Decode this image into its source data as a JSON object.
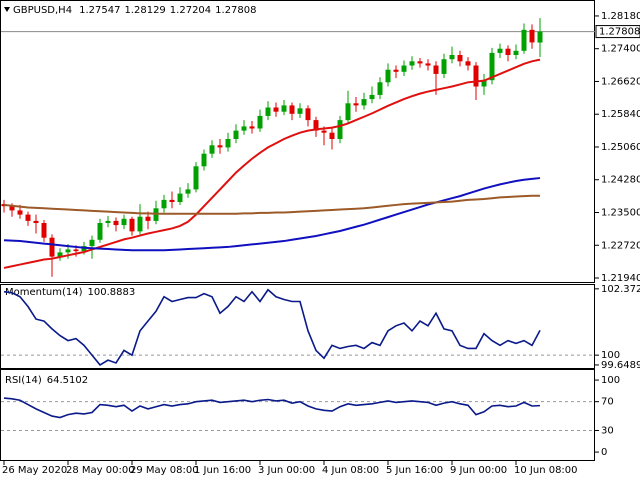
{
  "chart_data": [
    {
      "type": "candlestick",
      "title": "GBPUSD,H4",
      "open": [
        1.237,
        1.2365,
        1.2355,
        1.2345,
        1.233,
        1.2325,
        1.229,
        1.2245,
        1.2255,
        1.2262,
        1.2258,
        1.227,
        1.2285,
        1.2325,
        1.233,
        1.232,
        1.2335,
        1.2305,
        1.234,
        1.233,
        1.236,
        1.238,
        1.2375,
        1.2395,
        1.2405,
        1.246,
        1.249,
        1.251,
        1.2505,
        1.2525,
        1.2545,
        1.2555,
        1.255,
        1.258,
        1.26,
        1.259,
        1.2605,
        1.2585,
        1.2598,
        1.257,
        1.2545,
        1.254,
        1.2525,
        1.257,
        1.261,
        1.2605,
        1.262,
        1.263,
        1.266,
        1.269,
        1.2685,
        1.27,
        1.271,
        1.2705,
        1.27,
        1.268,
        1.2715,
        1.2725,
        1.271,
        1.27,
        1.265,
        1.2665,
        1.273,
        1.274,
        1.2725,
        1.2735,
        1.2785,
        1.27547
      ],
      "high": [
        1.238,
        1.2372,
        1.2368,
        1.2352,
        1.2345,
        1.2332,
        1.2298,
        1.2265,
        1.2275,
        1.2272,
        1.228,
        1.2295,
        1.2335,
        1.2342,
        1.2338,
        1.2345,
        1.234,
        1.237,
        1.2352,
        1.2378,
        1.2392,
        1.24,
        1.241,
        1.242,
        1.247,
        1.25,
        1.2522,
        1.2525,
        1.254,
        1.256,
        1.257,
        1.2568,
        1.2595,
        1.2615,
        1.2612,
        1.2618,
        1.2612,
        1.261,
        1.2605,
        1.2578,
        1.2555,
        1.255,
        1.258,
        1.264,
        1.2625,
        1.2635,
        1.265,
        1.2672,
        1.2705,
        1.27,
        1.2712,
        1.2722,
        1.2718,
        1.2715,
        1.271,
        1.2728,
        1.2745,
        1.2735,
        1.272,
        1.2708,
        1.268,
        1.2742,
        1.2752,
        1.2748,
        1.275,
        1.28,
        1.2798,
        1.28129
      ],
      "low": [
        1.235,
        1.234,
        1.2335,
        1.2318,
        1.23,
        1.228,
        1.2197,
        1.2235,
        1.224,
        1.2245,
        1.225,
        1.224,
        1.2278,
        1.2315,
        1.2305,
        1.231,
        1.2295,
        1.2298,
        1.231,
        1.2322,
        1.235,
        1.236,
        1.2368,
        1.2385,
        1.2398,
        1.245,
        1.248,
        1.249,
        1.2495,
        1.2515,
        1.2535,
        1.2538,
        1.2542,
        1.257,
        1.2578,
        1.2582,
        1.257,
        1.2575,
        1.2555,
        1.253,
        1.251,
        1.25,
        1.2515,
        1.2562,
        1.259,
        1.2595,
        1.261,
        1.262,
        1.265,
        1.267,
        1.2675,
        1.269,
        1.2695,
        1.2688,
        1.263,
        1.267,
        1.2705,
        1.2698,
        1.2688,
        1.2618,
        1.263,
        1.2655,
        1.2718,
        1.271,
        1.2715,
        1.2728,
        1.274,
        1.27204
      ],
      "close": [
        1.2365,
        1.2355,
        1.2345,
        1.233,
        1.2325,
        1.229,
        1.2245,
        1.2255,
        1.2262,
        1.2258,
        1.227,
        1.2285,
        1.2325,
        1.233,
        1.232,
        1.2335,
        1.2305,
        1.234,
        1.233,
        1.236,
        1.238,
        1.2375,
        1.2395,
        1.2405,
        1.246,
        1.249,
        1.251,
        1.2505,
        1.2525,
        1.2545,
        1.2555,
        1.255,
        1.258,
        1.26,
        1.259,
        1.2605,
        1.2585,
        1.2598,
        1.257,
        1.2545,
        1.254,
        1.2525,
        1.257,
        1.261,
        1.2605,
        1.262,
        1.263,
        1.266,
        1.269,
        1.2685,
        1.27,
        1.271,
        1.2705,
        1.27,
        1.268,
        1.2715,
        1.2725,
        1.271,
        1.27,
        1.265,
        1.2665,
        1.273,
        1.274,
        1.2725,
        1.2735,
        1.2785,
        1.2755,
        1.27808
      ],
      "up_color": "#00a000",
      "down_color": "#e00000",
      "series": [
        {
          "color": "#e01010",
          "values": [
            1.2218,
            1.2222,
            1.2226,
            1.223,
            1.2234,
            1.2238,
            1.224,
            1.2244,
            1.2248,
            1.2252,
            1.2256,
            1.2262,
            1.2268,
            1.2274,
            1.228,
            1.2286,
            1.229,
            1.2295,
            1.23,
            1.2304,
            1.2308,
            1.2312,
            1.2318,
            1.2328,
            1.2345,
            1.2365,
            1.2385,
            1.2405,
            1.2425,
            1.2445,
            1.2462,
            1.2478,
            1.2492,
            1.2505,
            1.2515,
            1.2525,
            1.2533,
            1.254,
            1.2545,
            1.2548,
            1.255,
            1.2552,
            1.2556,
            1.2562,
            1.257,
            1.2578,
            1.2586,
            1.2595,
            1.2604,
            1.2612,
            1.262,
            1.2627,
            1.2633,
            1.2638,
            1.2642,
            1.2646,
            1.265,
            1.2655,
            1.266,
            1.2662,
            1.2664,
            1.2672,
            1.268,
            1.2688,
            1.2696,
            1.2704,
            1.271,
            1.2714
          ]
        },
        {
          "color": "#1010c0",
          "values": [
            1.2284,
            1.2283,
            1.2282,
            1.228,
            1.2278,
            1.2276,
            1.2274,
            1.2272,
            1.227,
            1.2268,
            1.2266,
            1.2265,
            1.2264,
            1.2263,
            1.2262,
            1.2261,
            1.226,
            1.226,
            1.226,
            1.226,
            1.226,
            1.2261,
            1.2262,
            1.2263,
            1.2264,
            1.2265,
            1.2266,
            1.2267,
            1.2268,
            1.227,
            1.2272,
            1.2274,
            1.2276,
            1.2278,
            1.228,
            1.2282,
            1.2285,
            1.2288,
            1.2291,
            1.2294,
            1.2298,
            1.2302,
            1.2306,
            1.2311,
            1.2316,
            1.2321,
            1.2327,
            1.2333,
            1.2339,
            1.2345,
            1.2351,
            1.2357,
            1.2363,
            1.2369,
            1.2374,
            1.2379,
            1.2384,
            1.2389,
            1.2395,
            1.2401,
            1.2407,
            1.2412,
            1.2417,
            1.2421,
            1.2425,
            1.2428,
            1.243,
            1.2432
          ]
        },
        {
          "color": "#9c5a28",
          "values": [
            1.2368,
            1.2366,
            1.2364,
            1.2362,
            1.2361,
            1.236,
            1.2359,
            1.2358,
            1.2357,
            1.2356,
            1.2355,
            1.2354,
            1.2353,
            1.2352,
            1.2351,
            1.235,
            1.2349,
            1.2348,
            1.2348,
            1.2347,
            1.2347,
            1.2347,
            1.2347,
            1.2347,
            1.2347,
            1.2347,
            1.2347,
            1.2347,
            1.2347,
            1.2347,
            1.2348,
            1.2348,
            1.2349,
            1.2349,
            1.235,
            1.235,
            1.2351,
            1.2352,
            1.2353,
            1.2354,
            1.2355,
            1.2356,
            1.2357,
            1.2358,
            1.2359,
            1.236,
            1.2362,
            1.2364,
            1.2366,
            1.2368,
            1.237,
            1.2371,
            1.2372,
            1.2373,
            1.2374,
            1.2375,
            1.2376,
            1.2378,
            1.238,
            1.2381,
            1.2382,
            1.2384,
            1.2386,
            1.2387,
            1.2388,
            1.2389,
            1.239,
            1.239
          ]
        }
      ],
      "ylim": [
        1.21845,
        1.28536
      ],
      "yticks": [
        {
          "value": 1.2818,
          "label": "1.28180"
        },
        {
          "value": 1.274,
          "label": "1.27400"
        },
        {
          "value": 1.2662,
          "label": "1.26620"
        },
        {
          "value": 1.2584,
          "label": "1.25840"
        },
        {
          "value": 1.2506,
          "label": "1.25060"
        },
        {
          "value": 1.2428,
          "label": "1.24280"
        },
        {
          "value": 1.235,
          "label": "1.23500"
        },
        {
          "value": 1.2272,
          "label": "1.22720"
        },
        {
          "value": 1.2194,
          "label": "1.21940"
        }
      ],
      "xticks": [
        {
          "value": 0,
          "label": "26 May 2020"
        },
        {
          "value": 8,
          "label": "28 May 00:00"
        },
        {
          "value": 16,
          "label": "29 May 08:00"
        },
        {
          "value": 24,
          "label": "1 Jun 16:00"
        },
        {
          "value": 32,
          "label": "3 Jun 00:00"
        },
        {
          "value": 40,
          "label": "4 Jun 08:00"
        },
        {
          "value": 48,
          "label": "5 Jun 16:00"
        },
        {
          "value": 56,
          "label": "9 Jun 00:00"
        },
        {
          "value": 64,
          "label": "10 Jun 08:00"
        }
      ]
    },
    {
      "type": "line",
      "title": "Momentum(14)",
      "series": [
        {
          "color": "#0a1a8a",
          "values": [
            102.27,
            102.23,
            102.09,
            101.74,
            101.29,
            101.22,
            100.94,
            100.7,
            100.52,
            100.59,
            100.35,
            100.0,
            99.65,
            99.82,
            99.72,
            100.17,
            100.0,
            100.87,
            101.22,
            101.57,
            102.09,
            101.92,
            101.99,
            102.06,
            102.06,
            102.2,
            102.09,
            101.5,
            101.74,
            102.09,
            101.92,
            102.27,
            101.92,
            102.34,
            102.09,
            101.99,
            101.92,
            101.92,
            100.87,
            100.17,
            99.89,
            100.35,
            100.24,
            100.31,
            100.35,
            100.24,
            100.45,
            100.35,
            100.87,
            101.05,
            101.15,
            100.87,
            101.22,
            101.05,
            101.5,
            100.94,
            100.87,
            100.35,
            100.24,
            100.24,
            100.77,
            100.52,
            100.35,
            100.52,
            100.42,
            100.52,
            100.35,
            100.8883
          ]
        }
      ],
      "ylim": [
        99.54,
        102.51
      ],
      "yticks": [
        102.3728,
        100,
        99.6489
      ],
      "levels": [
        100
      ]
    },
    {
      "type": "line",
      "title": "RSI(14)",
      "series": [
        {
          "color": "#0a1a8a",
          "values": [
            75,
            74,
            72,
            66,
            60,
            55,
            50,
            48,
            52,
            54,
            53,
            55,
            66,
            65,
            63,
            65,
            57,
            64,
            60,
            63,
            66,
            64,
            66,
            67,
            70,
            71,
            72,
            69,
            70,
            71,
            72,
            70,
            72,
            73,
            71,
            72,
            68,
            70,
            64,
            60,
            58,
            57,
            63,
            67,
            65,
            66,
            67,
            69,
            71,
            69,
            70,
            71,
            70,
            69,
            65,
            68,
            70,
            67,
            65,
            52,
            56,
            64,
            65,
            63,
            64,
            69,
            64,
            64.5102
          ]
        }
      ],
      "ylim": [
        -11,
        114
      ],
      "yticks": [
        100,
        70,
        30,
        0
      ],
      "levels": [
        70,
        30
      ]
    }
  ]
}
